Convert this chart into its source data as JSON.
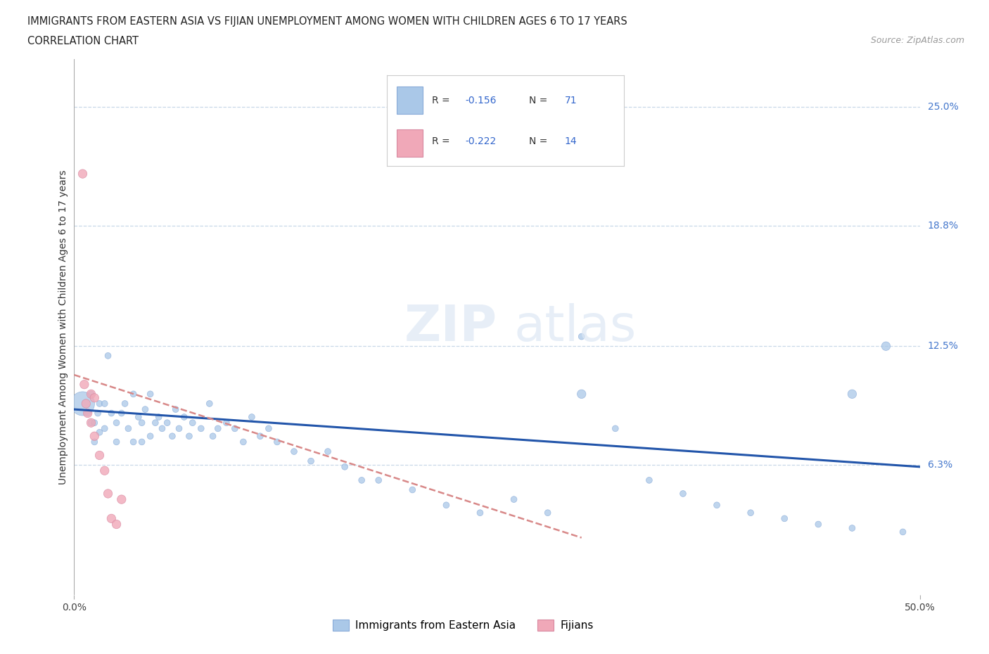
{
  "title_line1": "IMMIGRANTS FROM EASTERN ASIA VS FIJIAN UNEMPLOYMENT AMONG WOMEN WITH CHILDREN AGES 6 TO 17 YEARS",
  "title_line2": "CORRELATION CHART",
  "source_text": "Source: ZipAtlas.com",
  "ylabel": "Unemployment Among Women with Children Ages 6 to 17 years",
  "legend_label1": "Immigrants from Eastern Asia",
  "legend_label2": "Fijians",
  "r1": -0.156,
  "n1": 71,
  "r2": -0.222,
  "n2": 14,
  "xlim": [
    0.0,
    0.5
  ],
  "ylim": [
    -0.005,
    0.275
  ],
  "ytick_values": [
    0.063,
    0.125,
    0.188,
    0.25
  ],
  "ytick_labels": [
    "6.3%",
    "12.5%",
    "18.8%",
    "25.0%"
  ],
  "grid_color": "#c8d8e8",
  "background_color": "#ffffff",
  "color_blue": "#aac8e8",
  "color_pink": "#f0a8b8",
  "line_blue": "#2255aa",
  "line_pink": "#d88888",
  "blue_scatter_x": [
    0.005,
    0.008,
    0.01,
    0.01,
    0.012,
    0.012,
    0.014,
    0.015,
    0.015,
    0.018,
    0.018,
    0.02,
    0.022,
    0.025,
    0.025,
    0.028,
    0.03,
    0.032,
    0.035,
    0.035,
    0.038,
    0.04,
    0.04,
    0.042,
    0.045,
    0.045,
    0.048,
    0.05,
    0.052,
    0.055,
    0.058,
    0.06,
    0.062,
    0.065,
    0.068,
    0.07,
    0.075,
    0.08,
    0.082,
    0.085,
    0.09,
    0.095,
    0.1,
    0.105,
    0.11,
    0.115,
    0.12,
    0.13,
    0.14,
    0.15,
    0.16,
    0.17,
    0.18,
    0.2,
    0.22,
    0.24,
    0.26,
    0.28,
    0.3,
    0.32,
    0.34,
    0.36,
    0.38,
    0.4,
    0.42,
    0.44,
    0.46,
    0.48,
    0.49,
    0.3,
    0.46
  ],
  "blue_scatter_y": [
    0.095,
    0.09,
    0.1,
    0.085,
    0.085,
    0.075,
    0.09,
    0.095,
    0.08,
    0.095,
    0.082,
    0.12,
    0.09,
    0.085,
    0.075,
    0.09,
    0.095,
    0.082,
    0.1,
    0.075,
    0.088,
    0.085,
    0.075,
    0.092,
    0.1,
    0.078,
    0.085,
    0.088,
    0.082,
    0.085,
    0.078,
    0.092,
    0.082,
    0.088,
    0.078,
    0.085,
    0.082,
    0.095,
    0.078,
    0.082,
    0.085,
    0.082,
    0.075,
    0.088,
    0.078,
    0.082,
    0.075,
    0.07,
    0.065,
    0.07,
    0.062,
    0.055,
    0.055,
    0.05,
    0.042,
    0.038,
    0.045,
    0.038,
    0.13,
    0.082,
    0.055,
    0.048,
    0.042,
    0.038,
    0.035,
    0.032,
    0.03,
    0.125,
    0.028,
    0.1,
    0.1
  ],
  "blue_scatter_s": [
    600,
    40,
    40,
    40,
    40,
    40,
    40,
    40,
    40,
    40,
    40,
    40,
    40,
    40,
    40,
    40,
    40,
    40,
    40,
    40,
    40,
    40,
    40,
    40,
    40,
    40,
    40,
    40,
    40,
    40,
    40,
    40,
    40,
    40,
    40,
    40,
    40,
    40,
    40,
    40,
    40,
    40,
    40,
    40,
    40,
    40,
    40,
    40,
    40,
    40,
    40,
    40,
    40,
    40,
    40,
    40,
    40,
    40,
    40,
    40,
    40,
    40,
    40,
    40,
    40,
    40,
    40,
    80,
    40,
    80,
    80
  ],
  "pink_scatter_x": [
    0.005,
    0.006,
    0.007,
    0.008,
    0.01,
    0.01,
    0.012,
    0.012,
    0.015,
    0.018,
    0.02,
    0.022,
    0.025,
    0.028
  ],
  "pink_scatter_y": [
    0.215,
    0.105,
    0.095,
    0.09,
    0.1,
    0.085,
    0.098,
    0.078,
    0.068,
    0.06,
    0.048,
    0.035,
    0.032,
    0.045
  ],
  "pink_scatter_s": [
    80,
    80,
    80,
    80,
    80,
    80,
    80,
    80,
    80,
    80,
    80,
    80,
    80,
    80
  ],
  "blue_line_x": [
    0.0,
    0.5
  ],
  "blue_line_y": [
    0.092,
    0.062
  ],
  "pink_line_x": [
    0.0,
    0.3
  ],
  "pink_line_y": [
    0.11,
    0.025
  ]
}
